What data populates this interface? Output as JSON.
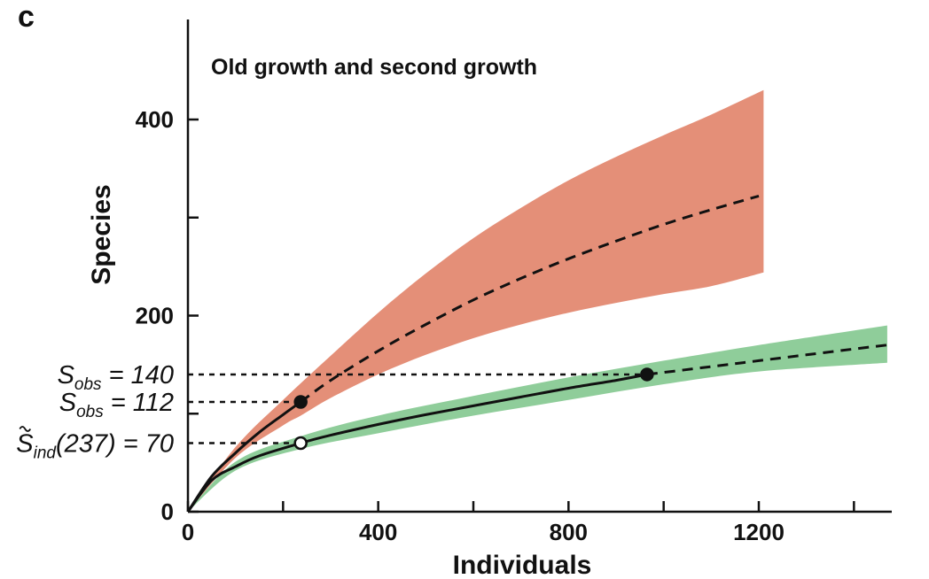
{
  "chart_data": {
    "type": "line",
    "panel_label": "c",
    "title": "Old growth and second growth",
    "xlabel": "Individuals",
    "ylabel": "Species",
    "xlim": [
      0,
      1470
    ],
    "ylim": [
      0,
      500
    ],
    "xticks": [
      0,
      200,
      400,
      600,
      800,
      1000,
      1200,
      1400
    ],
    "xtick_labels": [
      "0",
      "",
      "400",
      "",
      "800",
      "",
      "1200",
      ""
    ],
    "yticks": [
      0,
      100,
      200,
      300,
      400
    ],
    "ytick_labels": [
      "0",
      "",
      "200",
      "",
      "400"
    ],
    "grid": false,
    "colors": {
      "old_growth_band": "#e48f78",
      "second_growth_band": "#8fcd9a",
      "line": "#111111"
    },
    "series": [
      {
        "band_color": "old_growth_band",
        "observed_n": 237,
        "observed_s": 112,
        "interpolated": {
          "x": [
            0,
            50,
            100,
            150,
            200,
            237
          ],
          "y": [
            0,
            36,
            60,
            81,
            99,
            112
          ]
        },
        "extrapolated": {
          "x": [
            237,
            300,
            400,
            500,
            600,
            700,
            800,
            900,
            1000,
            1100,
            1200
          ],
          "y": [
            112,
            134,
            164,
            191,
            216,
            238,
            258,
            276,
            293,
            308,
            322
          ]
        },
        "ci_upper": {
          "x": [
            0,
            100,
            200,
            300,
            400,
            500,
            600,
            700,
            800,
            900,
            1000,
            1100,
            1210
          ],
          "y": [
            0,
            66,
            114,
            159,
            203,
            243,
            279,
            310,
            338,
            362,
            384,
            405,
            430
          ]
        },
        "ci_lower": {
          "x": [
            0,
            100,
            200,
            237,
            300,
            400,
            500,
            600,
            700,
            800,
            900,
            1000,
            1100,
            1210
          ],
          "y": [
            0,
            55,
            88,
            98,
            116,
            140,
            160,
            177,
            191,
            203,
            213,
            222,
            230,
            244
          ]
        }
      },
      {
        "band_color": "second_growth_band",
        "observed_n": 965,
        "observed_s": 140,
        "interpolated": {
          "x": [
            0,
            50,
            100,
            150,
            237,
            300,
            400,
            500,
            600,
            700,
            800,
            900,
            965
          ],
          "y": [
            0,
            32,
            46,
            57,
            70,
            78,
            89,
            99,
            108,
            117,
            126,
            134,
            140
          ]
        },
        "extrapolated": {
          "x": [
            965,
            1100,
            1200,
            1300,
            1400,
            1470
          ],
          "y": [
            140,
            148,
            154,
            160,
            166,
            170
          ]
        },
        "ci_upper": {
          "x": [
            0,
            100,
            237,
            400,
            600,
            800,
            1000,
            1200,
            1470
          ],
          "y": [
            0,
            51,
            77,
            98,
            118,
            137,
            154,
            170,
            190
          ]
        },
        "ci_lower": {
          "x": [
            0,
            100,
            237,
            400,
            600,
            800,
            1000,
            1200,
            1470
          ],
          "y": [
            0,
            42,
            64,
            80,
            98,
            114,
            130,
            143,
            152
          ]
        }
      }
    ],
    "reference_lines": [
      {
        "y": 140,
        "x_end": 965
      },
      {
        "y": 112,
        "x_end": 237
      },
      {
        "y": 70,
        "x_end": 237
      }
    ],
    "markers": [
      {
        "x": 237,
        "y": 112,
        "filled": true
      },
      {
        "x": 965,
        "y": 140,
        "filled": true
      },
      {
        "x": 237,
        "y": 70,
        "filled": false
      }
    ],
    "annotations": [
      {
        "main": "S",
        "sub": "obs",
        "rest": " = 140",
        "y": 140,
        "tilde": false
      },
      {
        "main": "S",
        "sub": "obs",
        "rest": " = 112",
        "y": 112,
        "tilde": false
      },
      {
        "main": "S",
        "sub": "ind",
        "rest": "(237) = 70",
        "y": 70,
        "tilde": true
      }
    ]
  }
}
